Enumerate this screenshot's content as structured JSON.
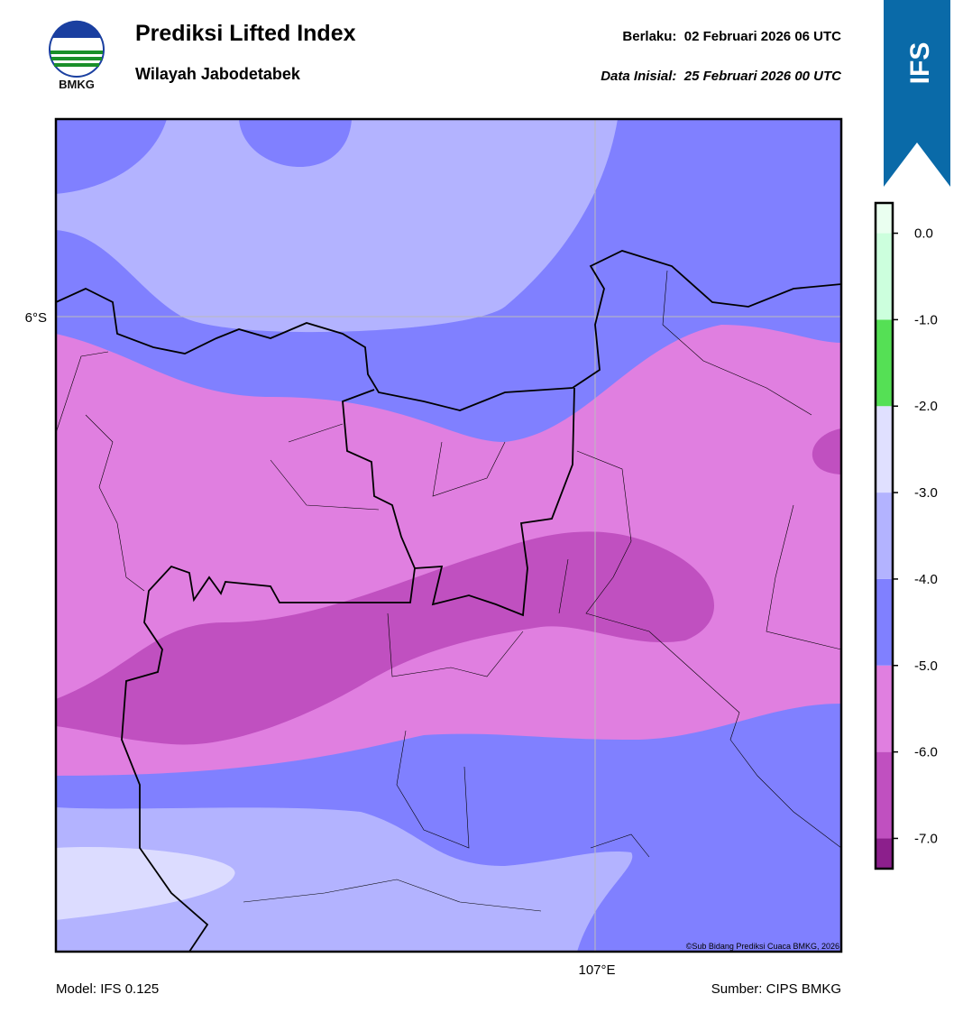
{
  "header": {
    "logo_text": "BMKG",
    "title": "Prediksi Lifted Index",
    "subtitle": "Wilayah Jabodetabek",
    "valid": "Berlaku:  02 Februari 2026 06 UTC",
    "init": "Data Inisial:  25 Februari 2026 00 UTC"
  },
  "badge": "IFS",
  "map": {
    "lat_label": "6°S",
    "lon_label": "107°E",
    "credit": "©Sub Bidang Prediksi Cuaca BMKG, 2026"
  },
  "colorbar": {
    "ylim": [
      -7.35,
      0.35
    ],
    "bins": [
      -7.35,
      -7,
      -6,
      -5,
      -4,
      -3,
      -2,
      -1,
      0,
      0.35
    ],
    "colors": [
      "#8c1f8c",
      "#c050c0",
      "#e07fe0",
      "#8080ff",
      "#b3b3ff",
      "#e0e0ff",
      "#55e055",
      "#ccffdd",
      "#eafff0"
    ],
    "ticks": [
      {
        "value": 0,
        "label": "0.0"
      },
      {
        "value": -1,
        "label": "-1.0"
      },
      {
        "value": -2,
        "label": "-2.0"
      },
      {
        "value": -3,
        "label": "-3.0"
      },
      {
        "value": -4,
        "label": "-4.0"
      },
      {
        "value": -5,
        "label": "-5.0"
      },
      {
        "value": -6,
        "label": "-6.0"
      },
      {
        "value": -7,
        "label": "-7.0"
      }
    ]
  },
  "footer": {
    "model": "Model: IFS 0.125",
    "source": "Sumber: CIPS BMKG"
  }
}
